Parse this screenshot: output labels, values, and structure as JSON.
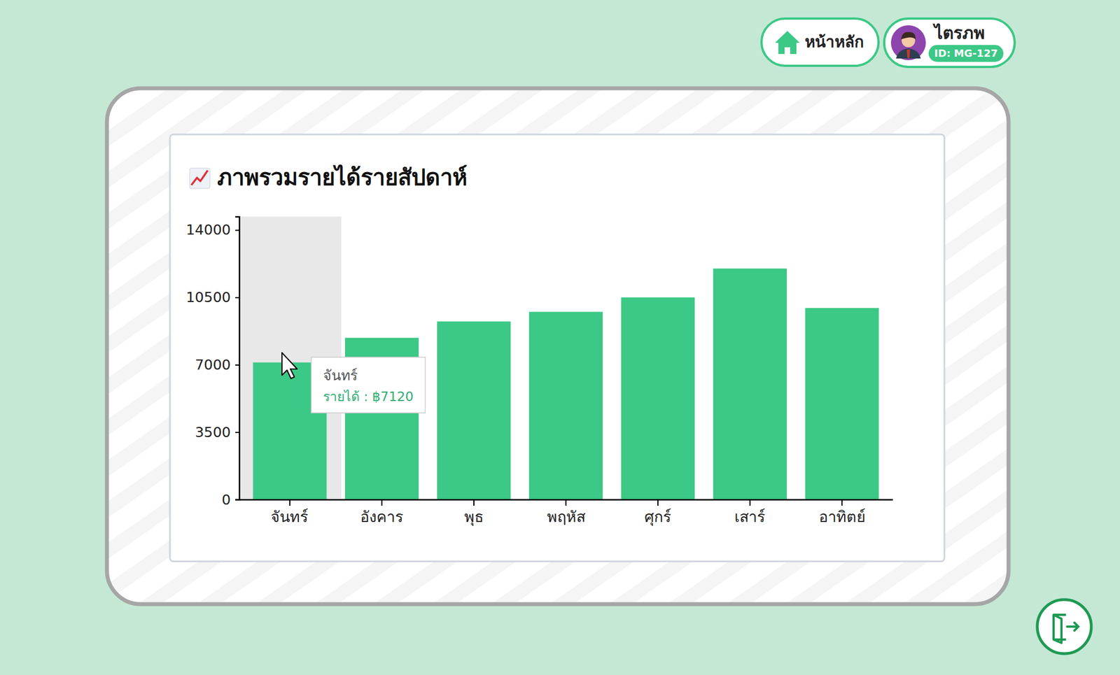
{
  "header": {
    "home": "หน้าหลัก",
    "user_name": "ไตรภพ",
    "user_id": "ID: MG-127"
  },
  "chart_data": {
    "type": "bar",
    "title": "ภาพรวมรายได้รายสัปดาห์",
    "categories": [
      "จันทร์",
      "อังคาร",
      "พุธ",
      "พฤหัส",
      "ศุกร์",
      "เสาร์",
      "อาทิตย์"
    ],
    "values": [
      7120,
      8400,
      9250,
      9750,
      10500,
      12000,
      9950
    ],
    "color": "#3cc886",
    "ylim": [
      0,
      14700
    ],
    "yticks": [
      0,
      3500,
      7000,
      10500,
      14000
    ],
    "grid": false,
    "annotations": [
      "จันทร์",
      "รายได้ : ฿7120"
    ]
  }
}
